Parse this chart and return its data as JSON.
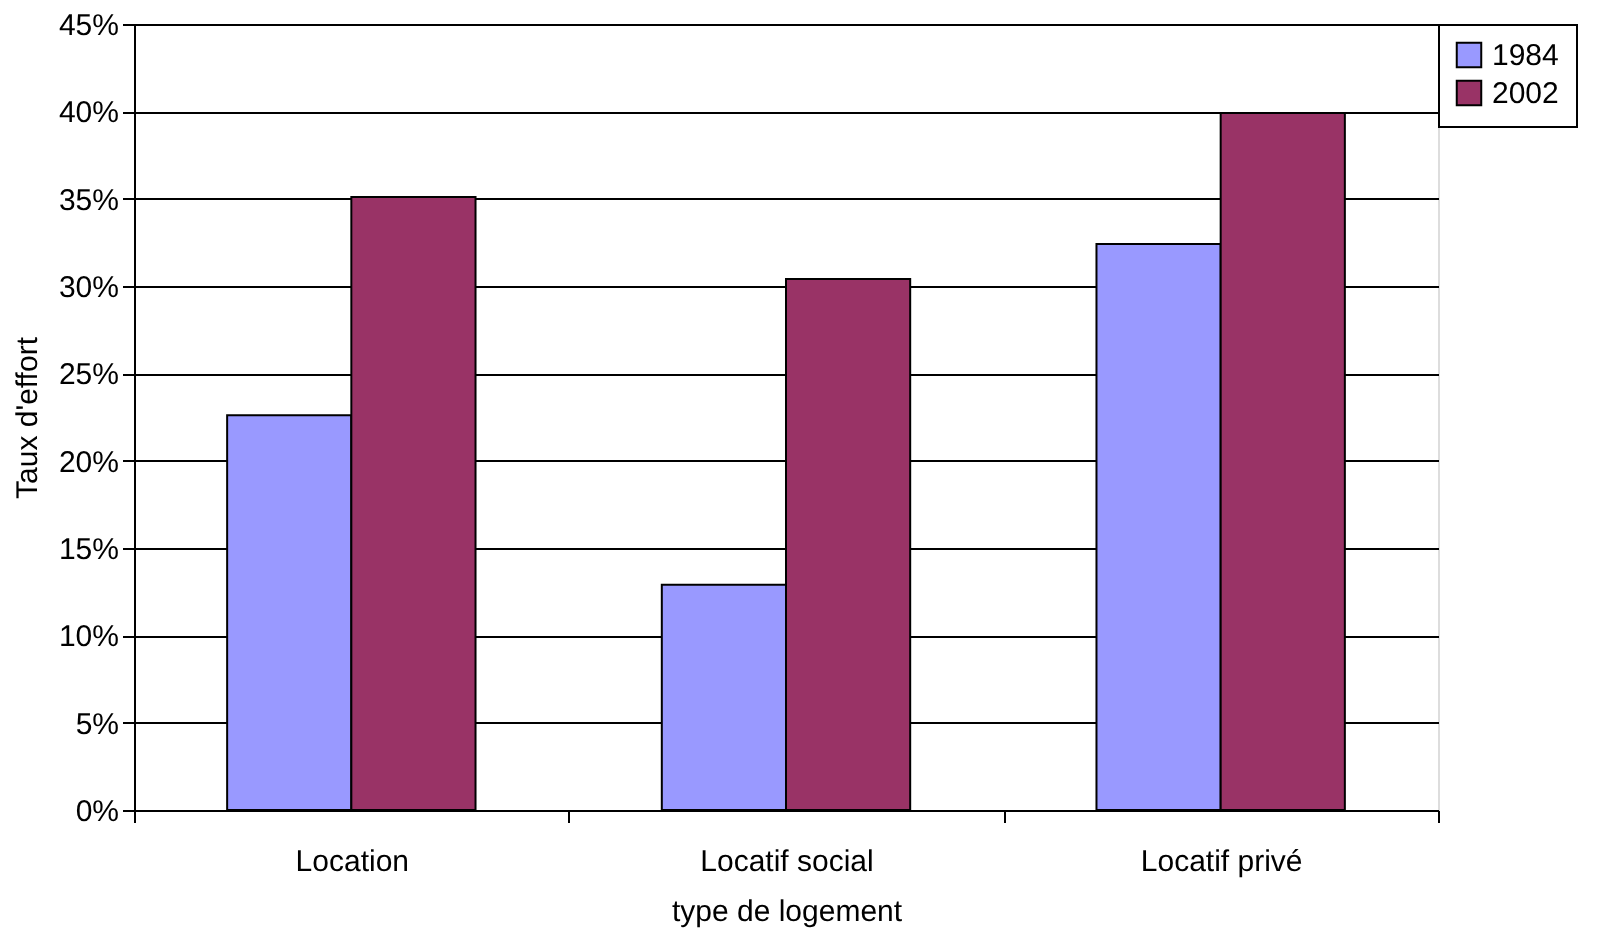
{
  "chart_data": {
    "type": "bar",
    "xlabel": "type de logement",
    "ylabel": "Taux d'effort",
    "categories": [
      "Location",
      "Locatif social",
      "Locatif privé"
    ],
    "series": [
      {
        "name": "1984",
        "color": "#9999ff",
        "values": [
          22.6,
          12.9,
          32.4
        ]
      },
      {
        "name": "2002",
        "color": "#993366",
        "values": [
          35.1,
          30.4,
          39.9
        ]
      }
    ],
    "ylim": [
      0,
      45
    ],
    "yticks": [
      {
        "value": 0,
        "label": "0%"
      },
      {
        "value": 5,
        "label": "5%"
      },
      {
        "value": 10,
        "label": "10%"
      },
      {
        "value": 15,
        "label": "15%"
      },
      {
        "value": 20,
        "label": "20%"
      },
      {
        "value": 25,
        "label": "25%"
      },
      {
        "value": 30,
        "label": "30%"
      },
      {
        "value": 35,
        "label": "35%"
      },
      {
        "value": 40,
        "label": "40%"
      },
      {
        "value": 45,
        "label": "45%"
      }
    ],
    "grid": "y",
    "legend": "right"
  }
}
